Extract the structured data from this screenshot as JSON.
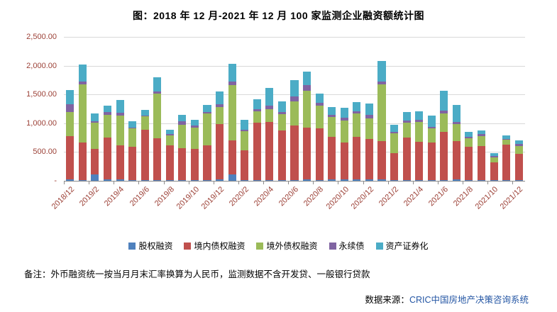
{
  "chart_data": {
    "type": "bar",
    "stacked": true,
    "title": "图：2018 年 12 月-2021 年 12 月 100 家监测企业融资额统计图",
    "xlabel": "",
    "ylabel": "",
    "ylim": [
      0,
      2500
    ],
    "grid": true,
    "legend_position": "bottom",
    "yticks": [
      {
        "value": 0,
        "label": "-"
      },
      {
        "value": 500,
        "label": "500.00"
      },
      {
        "value": 1000,
        "label": "1,000.00"
      },
      {
        "value": 1500,
        "label": "1,500.00"
      },
      {
        "value": 2000,
        "label": "2,000.00"
      },
      {
        "value": 2500,
        "label": "2,500.00"
      }
    ],
    "xtick_every": 2,
    "months": [
      "2018/12",
      "2019/1",
      "2019/2",
      "2019/3",
      "2019/4",
      "2019/5",
      "2019/6",
      "2019/7",
      "2019/8",
      "2019/9",
      "2019/10",
      "2019/11",
      "2019/12",
      "2020/1",
      "2020/2",
      "2020/3",
      "2020/4",
      "2020/5",
      "2020/6",
      "2020/7",
      "2020/8",
      "2020/9",
      "2020/10",
      "2020/11",
      "2020/12",
      "2021/1",
      "2021/2",
      "2021/3",
      "2021/4",
      "2021/5",
      "2021/6",
      "2021/7",
      "2021/8",
      "2021/9",
      "2021/10",
      "2021/11",
      "2021/12"
    ],
    "series": [
      {
        "name": "股权融资",
        "color": "#4f81bd",
        "values": [
          20,
          15,
          110,
          20,
          30,
          15,
          15,
          15,
          10,
          10,
          10,
          10,
          30,
          110,
          10,
          10,
          10,
          10,
          15,
          20,
          15,
          20,
          30,
          20,
          30,
          25,
          10,
          15,
          15,
          10,
          15,
          20,
          10,
          10,
          10,
          10,
          10
        ]
      },
      {
        "name": "境内债权融资",
        "color": "#c0504d",
        "values": [
          760,
          655,
          450,
          730,
          580,
          580,
          870,
          720,
          600,
          560,
          540,
          600,
          950,
          590,
          520,
          1000,
          1010,
          870,
          940,
          900,
          900,
          740,
          640,
          750,
          700,
          660,
          470,
          740,
          660,
          650,
          830,
          670,
          580,
          590,
          310,
          620,
          460
        ]
      },
      {
        "name": "境外债权融资",
        "color": "#9bbb59",
        "values": [
          420,
          1000,
          450,
          400,
          520,
          320,
          230,
          780,
          180,
          400,
          370,
          560,
          300,
          960,
          330,
          200,
          230,
          280,
          430,
          650,
          390,
          350,
          380,
          400,
          350,
          990,
          340,
          250,
          350,
          250,
          330,
          300,
          150,
          180,
          90,
          80,
          140
        ]
      },
      {
        "name": "永续债",
        "color": "#8064a2",
        "values": [
          130,
          60,
          30,
          40,
          50,
          15,
          20,
          40,
          20,
          60,
          40,
          30,
          50,
          60,
          30,
          40,
          60,
          40,
          80,
          90,
          45,
          40,
          50,
          40,
          60,
          50,
          30,
          40,
          30,
          30,
          40,
          30,
          20,
          30,
          20,
          20,
          30
        ]
      },
      {
        "name": "资产证券化",
        "color": "#4bacc6",
        "values": [
          250,
          290,
          130,
          120,
          220,
          100,
          95,
          245,
          80,
          120,
          100,
          120,
          220,
          310,
          170,
          170,
          310,
          180,
          285,
          240,
          160,
          130,
          170,
          160,
          200,
          355,
          120,
          155,
          155,
          190,
          345,
          300,
          90,
          70,
          50,
          60,
          60
        ]
      }
    ]
  },
  "footer": {
    "note": "备注：外币融资统一按当月月末汇率换算为人民币，监测数据不含开发贷、一般银行贷款",
    "source_prefix": "数据来源：",
    "source_name": "CRIC中国房地产决策咨询系统"
  },
  "colors": {
    "axis_text": "#9c4137",
    "grid": "#d9d9d9",
    "axis_line": "#8c8c8c",
    "source_link": "#2456a4"
  }
}
